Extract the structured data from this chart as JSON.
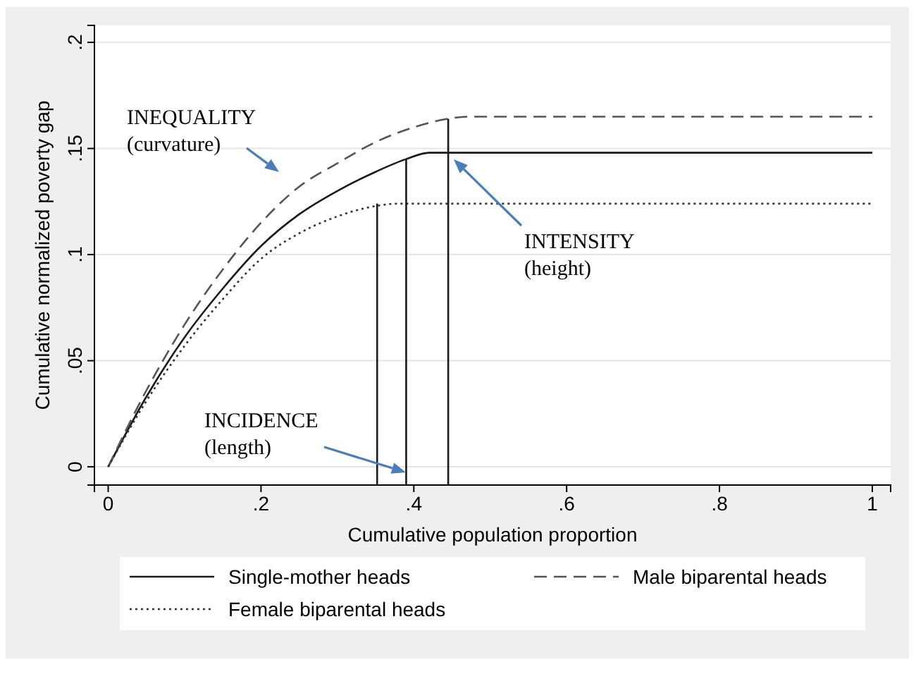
{
  "chart_data": {
    "type": "line",
    "xlabel": "Cumulative population proportion",
    "ylabel": "Cumulative normalized poverty gap",
    "xlim": [
      -0.018,
      1.024
    ],
    "ylim": [
      -0.0086,
      0.208
    ],
    "xticks": [
      0,
      {
        "value": 0.2,
        "label": ".2"
      },
      {
        "value": 0.4,
        "label": ".4"
      },
      {
        "value": 0.6,
        "label": ".6"
      },
      {
        "value": 0.8,
        "label": ".8"
      },
      1
    ],
    "yticks": [
      0,
      {
        "value": 0.05,
        "label": ".05"
      },
      {
        "value": 0.1,
        "label": ".1"
      },
      {
        "value": 0.15,
        "label": ".15"
      },
      {
        "value": 0.2,
        "label": ".2"
      }
    ],
    "grid": "y",
    "legend": "bottom",
    "series": [
      {
        "name": "Single-mother heads",
        "color": "#1a1a1a",
        "line_style": "solid",
        "x": [
          0,
          0.05,
          0.1,
          0.15,
          0.2,
          0.25,
          0.3,
          0.35,
          0.39,
          0.42,
          1
        ],
        "values": [
          0,
          0.033,
          0.061,
          0.084,
          0.104,
          0.119,
          0.13,
          0.139,
          0.145,
          0.148,
          0.148
        ]
      },
      {
        "name": "Male biparental heads",
        "color": "#555555",
        "line_style": "dashed",
        "x": [
          0,
          0.05,
          0.1,
          0.15,
          0.2,
          0.25,
          0.3,
          0.35,
          0.4,
          0.445,
          0.47,
          1
        ],
        "values": [
          0,
          0.036,
          0.067,
          0.093,
          0.115,
          0.132,
          0.143,
          0.153,
          0.16,
          0.164,
          0.165,
          0.165
        ]
      },
      {
        "name": "Female biparental heads",
        "color": "#333333",
        "line_style": "dotted",
        "x": [
          0,
          0.05,
          0.1,
          0.15,
          0.2,
          0.25,
          0.3,
          0.352,
          0.38,
          1
        ],
        "values": [
          0,
          0.031,
          0.057,
          0.079,
          0.098,
          0.11,
          0.118,
          0.123,
          0.124,
          0.124
        ]
      },
      {
        "color": "#1a1a1a",
        "line_style": "solid",
        "x": [
          0.352,
          0.352
        ],
        "values": [
          -0.0086,
          0.124
        ]
      },
      {
        "color": "#1a1a1a",
        "line_style": "solid",
        "x": [
          0.39,
          0.39
        ],
        "values": [
          -0.0086,
          0.145
        ]
      },
      {
        "color": "#1a1a1a",
        "line_style": "solid",
        "x": [
          0.445,
          0.445
        ],
        "values": [
          -0.0086,
          0.164
        ]
      }
    ],
    "annotations": [
      "INEQUALITY\n(curvature)",
      "INTENSITY\n(height)",
      "INCIDENCE\n(length)"
    ]
  }
}
